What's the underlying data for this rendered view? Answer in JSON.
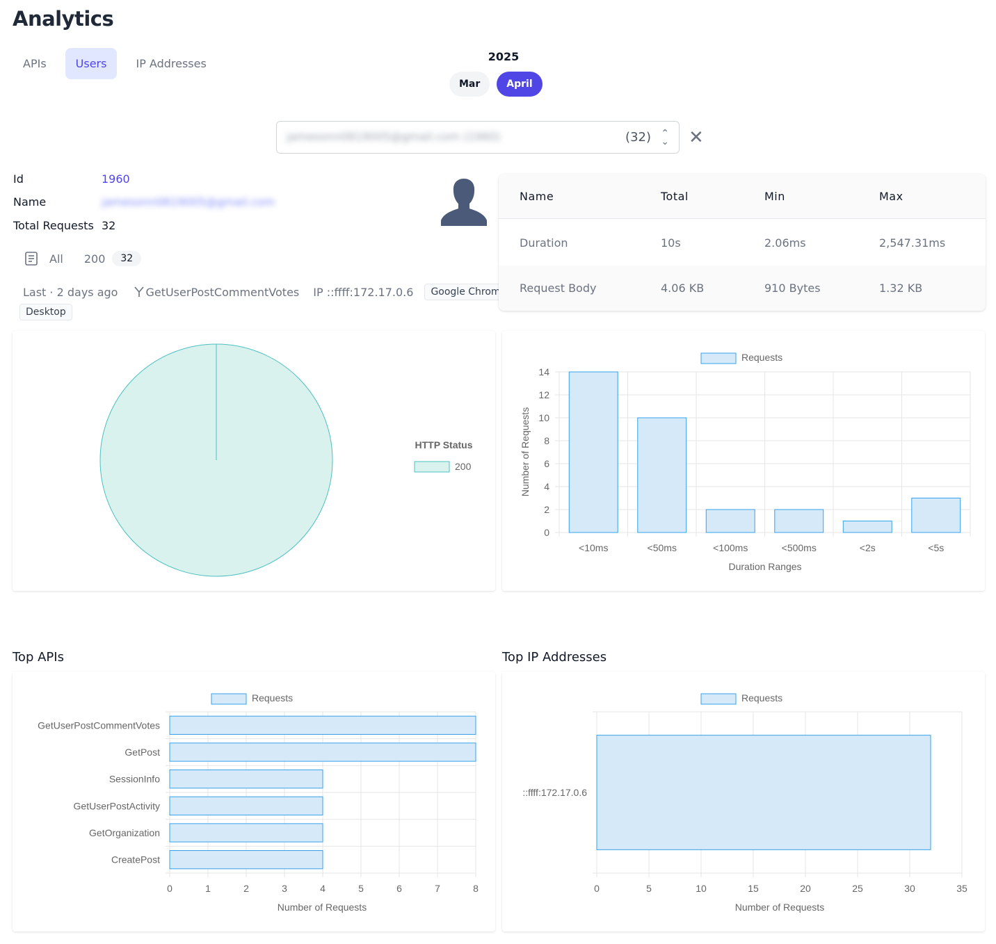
{
  "page": {
    "title": "Analytics"
  },
  "tabs": [
    {
      "label": "APIs",
      "active": false
    },
    {
      "label": "Users",
      "active": true
    },
    {
      "label": "IP Addresses",
      "active": false
    }
  ],
  "period": {
    "year": "2025",
    "months": [
      {
        "label": "Mar",
        "active": false
      },
      {
        "label": "April",
        "active": true
      }
    ]
  },
  "user_select": {
    "value": "jamesonn0819005@gmail.com (1960)",
    "count": "(32)"
  },
  "user": {
    "id_label": "Id",
    "id_value": "1960",
    "name_label": "Name",
    "name_value": "jamesonn0819005@gmail.com",
    "total_label": "Total Requests",
    "total_value": "32"
  },
  "filter": {
    "all_label": "All",
    "status_label": "200",
    "status_count": "32"
  },
  "meta": {
    "last": "Last · 2 days ago",
    "api": "GetUserPostCommentVotes",
    "ip": "IP ::ffff:172.17.0.6",
    "browser": "Google Chrome",
    "device": "Desktop"
  },
  "stats": {
    "headers": [
      "Name",
      "Total",
      "Min",
      "Max"
    ],
    "rows": [
      [
        "Duration",
        "10s",
        "2.06ms",
        "2,547.31ms"
      ],
      [
        "Request Body",
        "4.06 KB",
        "910 Bytes",
        "1.32 KB"
      ]
    ]
  },
  "sections": {
    "top_apis": "Top APIs",
    "top_ips": "Top IP Addresses"
  },
  "colors": {
    "accent": "#4f46e5",
    "bar_fill": "#d6e9f8",
    "bar_stroke": "#36a2eb",
    "pie_fill": "#d9f2ee",
    "pie_stroke": "#4bc0c0"
  },
  "chart_data": [
    {
      "type": "pie",
      "legend_title": "HTTP Status",
      "labels": [
        "200"
      ],
      "values": [
        32
      ]
    },
    {
      "type": "bar",
      "legend": "Requests",
      "categories": [
        "<10ms",
        "<50ms",
        "<100ms",
        "<500ms",
        "<2s",
        "<5s"
      ],
      "values": [
        14,
        10,
        2,
        2,
        1,
        3
      ],
      "xlabel": "Duration Ranges",
      "ylabel": "Number of Requests",
      "ylim": [
        0,
        14
      ],
      "yticks": [
        "0",
        "2",
        "4",
        "6",
        "8",
        "10",
        "12",
        "14"
      ]
    },
    {
      "type": "bar",
      "orientation": "horizontal",
      "legend": "Requests",
      "categories": [
        "GetUserPostCommentVotes",
        "GetPost",
        "SessionInfo",
        "GetUserPostActivity",
        "GetOrganization",
        "CreatePost"
      ],
      "values": [
        8,
        8,
        4,
        4,
        4,
        4
      ],
      "xlabel": "Number of Requests",
      "xlim": [
        0,
        8
      ],
      "xticks": [
        "0",
        "1",
        "2",
        "3",
        "4",
        "5",
        "6",
        "7",
        "8"
      ]
    },
    {
      "type": "bar",
      "orientation": "horizontal",
      "legend": "Requests",
      "categories": [
        "::ffff:172.17.0.6"
      ],
      "values": [
        32
      ],
      "xlabel": "Number of Requests",
      "xlim": [
        0,
        35
      ],
      "xticks": [
        "0",
        "5",
        "10",
        "15",
        "20",
        "25",
        "30",
        "35"
      ]
    }
  ]
}
